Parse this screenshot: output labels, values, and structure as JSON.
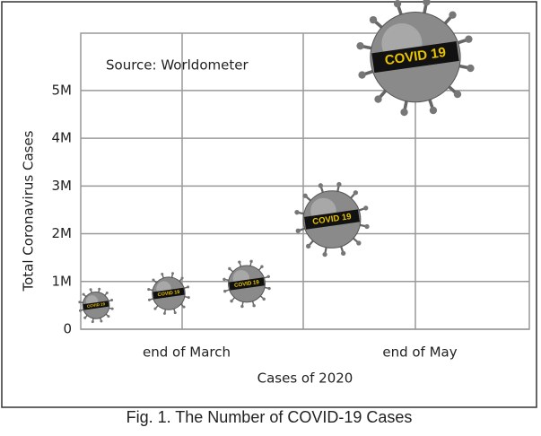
{
  "chart_data": {
    "type": "bubble",
    "annotation": "Source: Worldometer",
    "ylabel": "Total Coronavirus Cases",
    "xlabel": "Cases of 2020",
    "caption": "Fig. 1. The Number of COVID-19 Cases",
    "marker_label": "COVID 19",
    "x": [
      3.4,
      19.6,
      37,
      56,
      74.6
    ],
    "values": [
      500000,
      750000,
      950000,
      2300000,
      5700000
    ],
    "xlim": [
      0,
      100
    ],
    "xticks": [
      {
        "value": 22.6,
        "label": "end of March"
      },
      {
        "value": 49.6,
        "label": null
      },
      {
        "value": 74.6,
        "label": "end of May"
      }
    ],
    "ylim": [
      0,
      6200000
    ],
    "yticks": [
      0,
      {
        "value": 1000000,
        "label": "1M"
      },
      {
        "value": 2000000,
        "label": "2M"
      },
      {
        "value": 3000000,
        "label": "3M"
      },
      {
        "value": 4000000,
        "label": "4M"
      },
      {
        "value": 5000000,
        "label": "5M"
      }
    ],
    "grid": true
  }
}
